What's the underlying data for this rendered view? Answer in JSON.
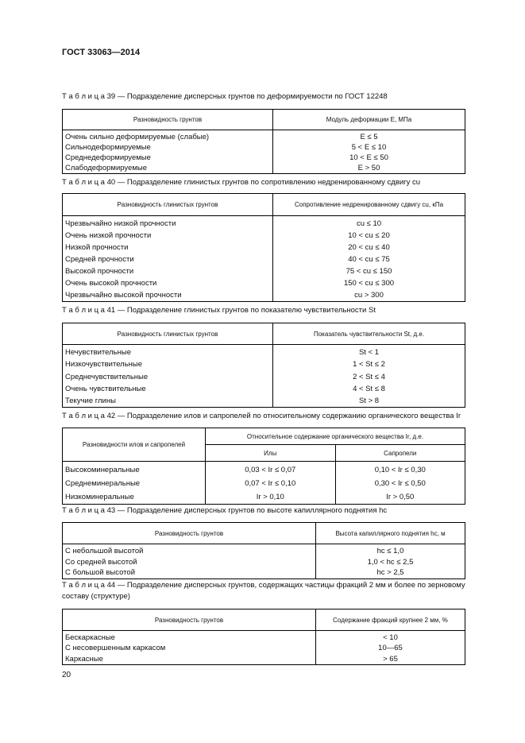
{
  "header": {
    "title": "ГОСТ 33063—2014"
  },
  "tables": [
    {
      "caption": "Т а б л и ц а  39 — Подразделение дисперсных грунтов по деформируемости по ГОСТ 12248",
      "columns": [
        "Разновидность грунтов",
        "Модуль деформации E, МПа"
      ],
      "rows": [
        [
          "Очень сильно деформируемые (слабые)",
          "E ≤ 5"
        ],
        [
          "Сильнодеформируемые",
          "5 < E ≤ 10"
        ],
        [
          "Среднедеформируемые",
          "10 < E ≤ 50"
        ],
        [
          "Слабодеформируемые",
          "E > 50"
        ]
      ]
    },
    {
      "caption": "Т а б л и ц а  40 — Подразделение глинистых грунтов по сопротивлению недренированному сдвигу cu",
      "columns": [
        "Разновидность глинистых грунтов",
        "Сопротивление недренированному сдвигу cu, кПа"
      ],
      "rows": [
        [
          "Чрезвычайно низкой прочности",
          "cu ≤ 10"
        ],
        [
          "Очень низкой прочности",
          "10 < cu ≤ 20"
        ],
        [
          "Низкой прочности",
          "20 < cu ≤ 40"
        ],
        [
          "Средней прочности",
          "40 < cu ≤ 75"
        ],
        [
          "Высокой прочности",
          "75 < cu ≤ 150"
        ],
        [
          "Очень высокой прочности",
          "150 < cu ≤ 300"
        ],
        [
          "Чрезвычайно высокой прочности",
          "cu > 300"
        ]
      ]
    },
    {
      "caption": "Т а б л и ц а  41 — Подразделение глинистых грунтов по показателю чувствительности St",
      "columns": [
        "Разновидность глинистых грунтов",
        "Показатель чувствительности St, д.е."
      ],
      "rows": [
        [
          "Нечувствительные",
          "St < 1"
        ],
        [
          "Низкочувствительные",
          "1 < St ≤ 2"
        ],
        [
          "Среднечувствительные",
          "2 < St ≤ 4"
        ],
        [
          "Очень чувствительные",
          "4 < St ≤ 8"
        ],
        [
          "Текучие глины",
          "St > 8"
        ]
      ]
    },
    {
      "caption": "Т а б л и ц а  42 — Подразделение илов и сапропелей по относительному содержанию органического вещества Ir",
      "columns": [
        "Разновидности илов и сапропелей",
        "Относительное содержание органического вещества Ir, д.е."
      ],
      "subcolumns": [
        "Илы",
        "Сапропели"
      ],
      "rows": [
        [
          "Высокоминеральные",
          "0,03 < Ir ≤ 0,07",
          "0,10 < Ir ≤ 0,30"
        ],
        [
          "Среднеминеральные",
          "0,07 < Ir ≤ 0,10",
          "0,30 < Ir ≤ 0,50"
        ],
        [
          "Низкоминеральные",
          "Ir > 0,10",
          "Ir > 0,50"
        ]
      ]
    },
    {
      "caption": "Т а б л и ц а  43 — Подразделение дисперсных грунтов по высоте капиллярного поднятия hc",
      "columns": [
        "Разновидность грунтов",
        "Высота капиллярного поднятия hc, м"
      ],
      "rows": [
        [
          "С небольшой высотой",
          "hc ≤ 1,0"
        ],
        [
          "Со средней высотой",
          "1,0 < hc ≤ 2,5"
        ],
        [
          "С большой высотой",
          "hc > 2,5"
        ]
      ]
    },
    {
      "caption": "Т а б л и ц а  44 — Подразделение дисперсных грунтов, содержащих частицы фракций 2 мм и более по зерновому составу (структуре)",
      "columns": [
        "Разновидность грунтов",
        "Содержание фракций крупнее 2 мм, %"
      ],
      "rows": [
        [
          "Бескаркасные",
          "< 10"
        ],
        [
          "С несовершенным каркасом",
          "10—65"
        ],
        [
          "Каркасные",
          "> 65"
        ]
      ]
    }
  ],
  "page_number": "20"
}
